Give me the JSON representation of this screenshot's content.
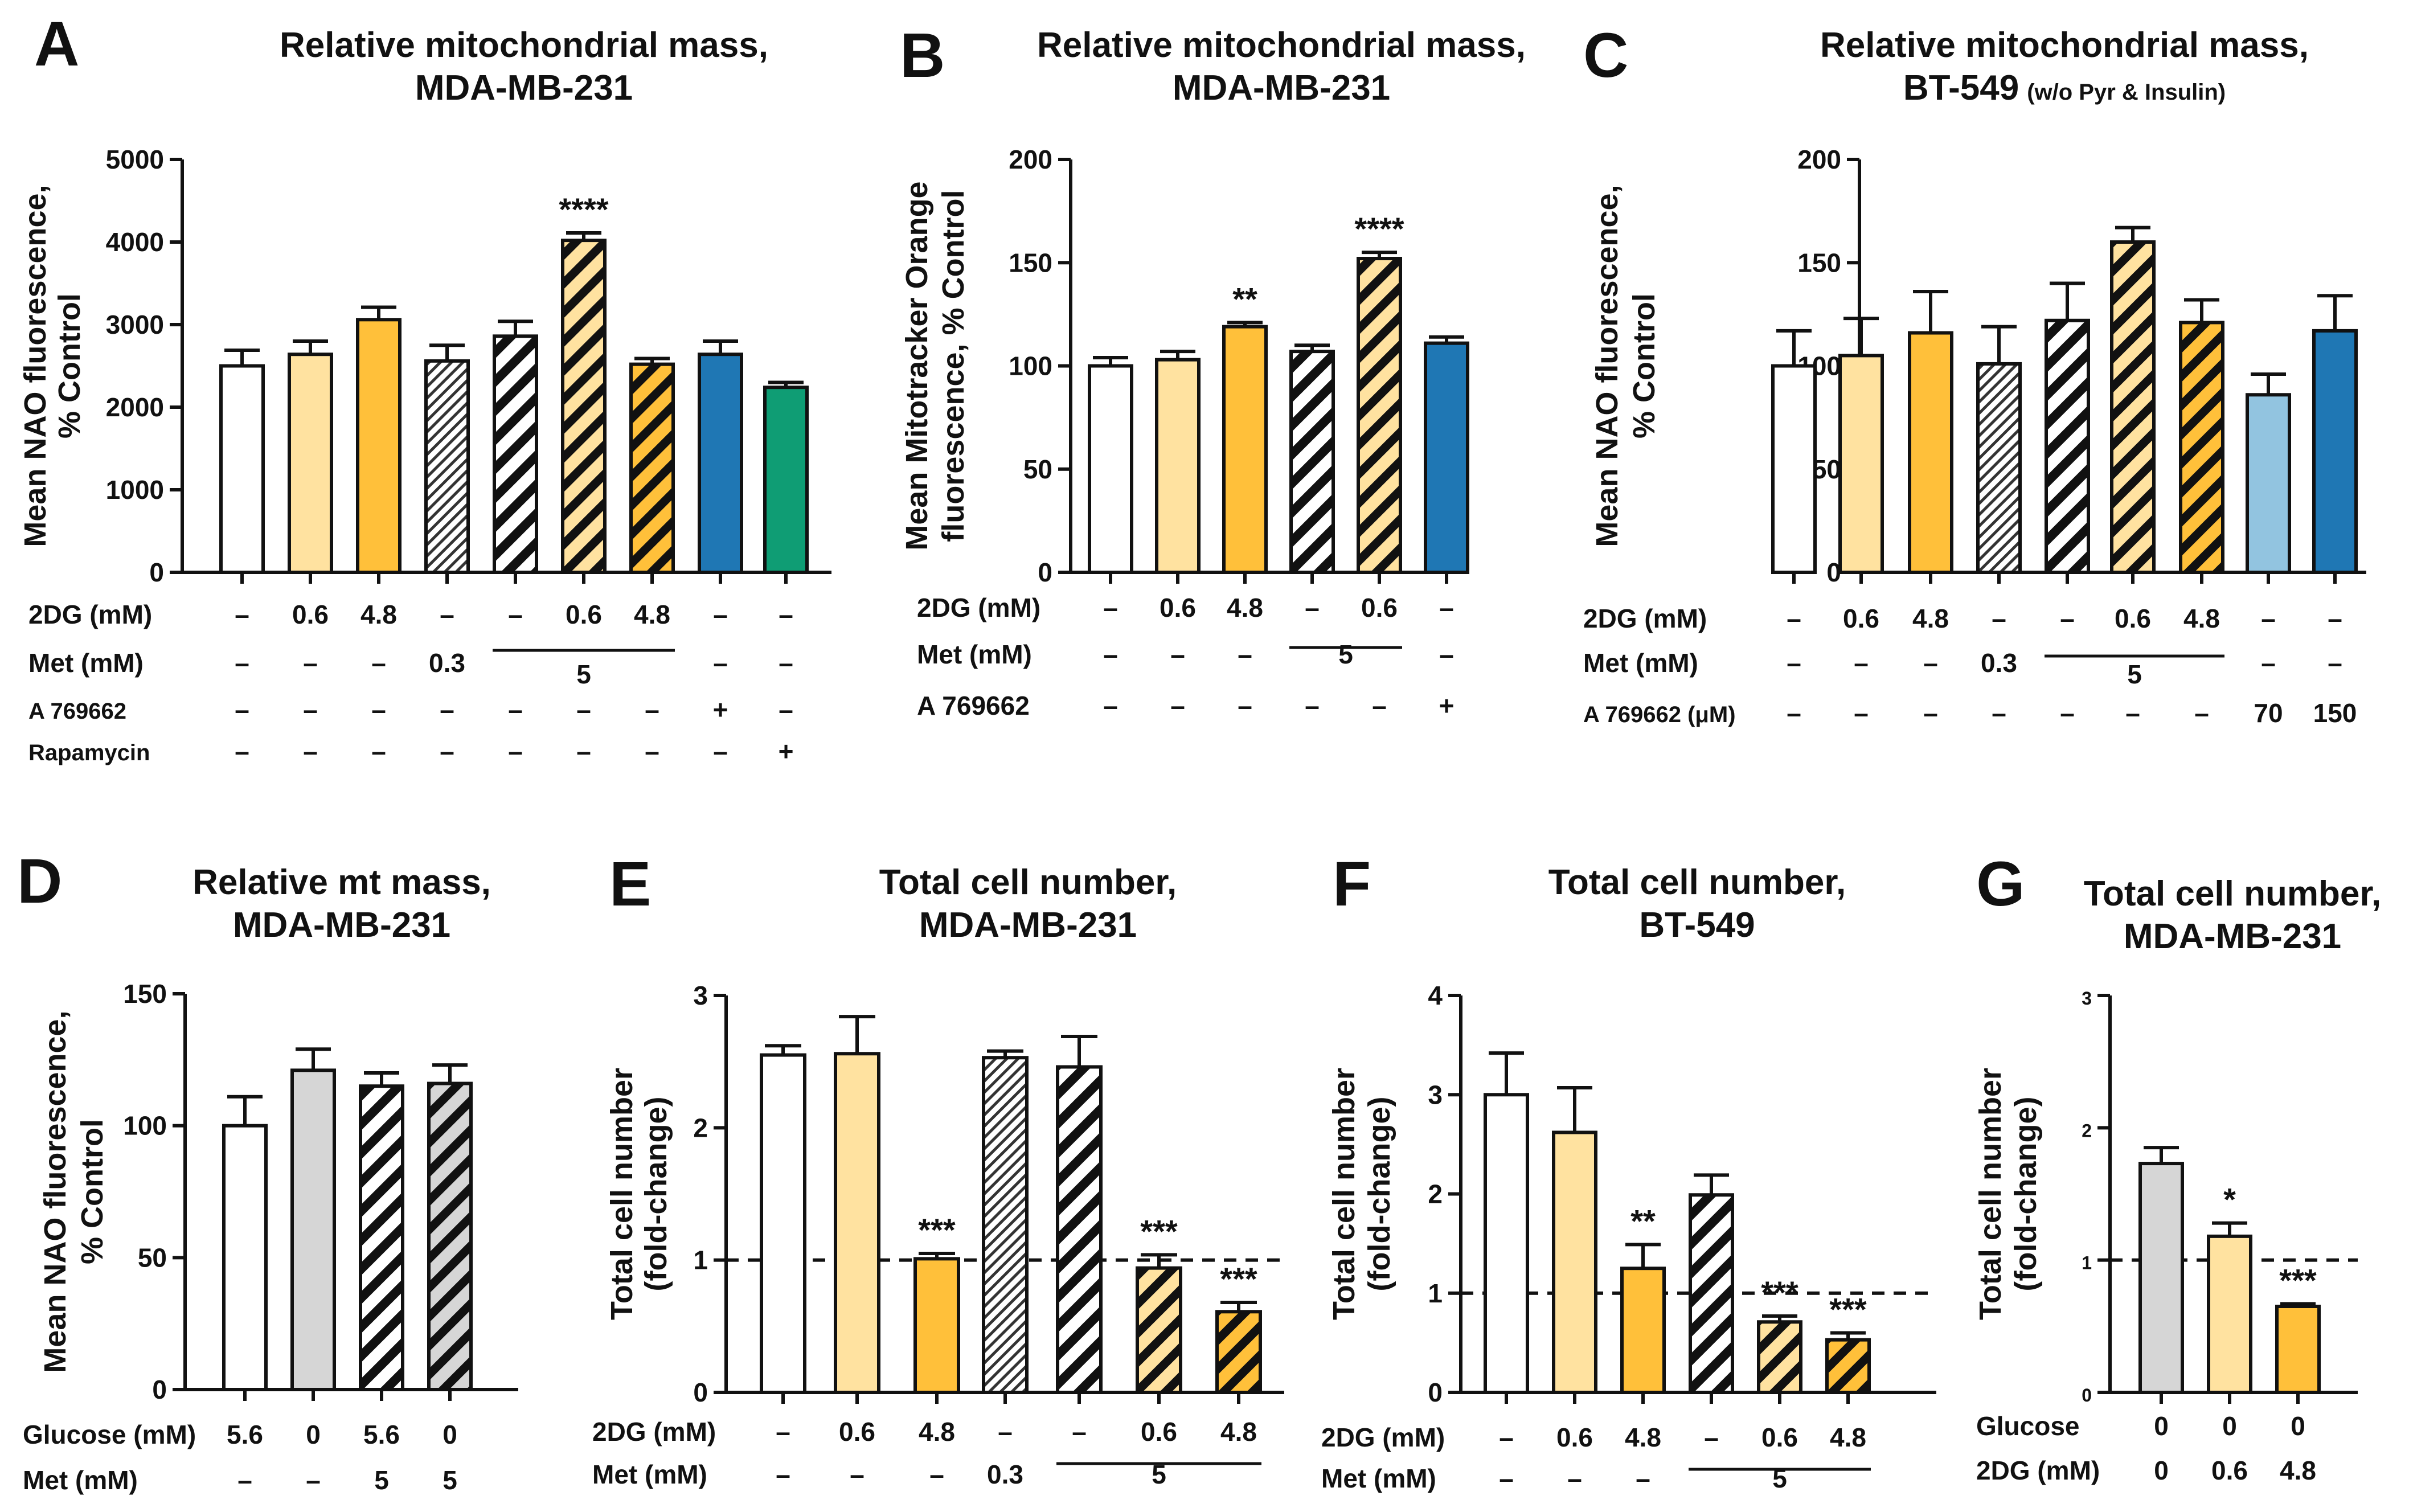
{
  "colors": {
    "white": "#ffffff",
    "light_yellow": "#FFE2A0",
    "orange": "#FFC03A",
    "blue": "#1F77B4",
    "green": "#0F9D74",
    "light_blue": "#92C4E0",
    "gray": "#D6D6D6",
    "black": "#111111"
  },
  "chart_data": [
    {
      "panel": "A",
      "type": "bar",
      "title": "Relative mitochondrial mass,",
      "title2": "MDA-MB-231",
      "ylabel": "Mean NAO fluorescence,",
      "ylabel2": "% Control",
      "ylim": [
        0,
        5000
      ],
      "yticks": [
        0,
        1000,
        2000,
        3000,
        4000,
        5000
      ],
      "values": [
        2500,
        2640,
        3060,
        2560,
        2860,
        4020,
        2520,
        2640,
        2240
      ],
      "errors": [
        190,
        160,
        150,
        190,
        180,
        90,
        70,
        160,
        60
      ],
      "fills": [
        "white",
        "light_yellow",
        "orange",
        "fine_hatch",
        "bw_hatch",
        "yellow_hatch",
        "orange_hatch",
        "blue",
        "green"
      ],
      "annotations": [
        {
          "bar": 5,
          "text": "****"
        }
      ],
      "conditions": [
        {
          "label": "2DG (mM)",
          "values": [
            "–",
            "0.6",
            "4.8",
            "–",
            "–",
            "0.6",
            "4.8",
            "–",
            "–"
          ]
        },
        {
          "label": "Met (mM)",
          "values": [
            "–",
            "–",
            "–",
            "0.3",
            "",
            "",
            "",
            "–",
            "–"
          ],
          "span": {
            "from": 4,
            "to": 6,
            "text": "5"
          }
        },
        {
          "label": "A 769662",
          "values": [
            "–",
            "–",
            "–",
            "–",
            "–",
            "–",
            "–",
            "+",
            "–"
          ]
        },
        {
          "label": "Rapamycin",
          "values": [
            "–",
            "–",
            "–",
            "–",
            "–",
            "–",
            "–",
            "–",
            "+"
          ]
        }
      ]
    },
    {
      "panel": "B",
      "type": "bar",
      "title": "Relative mitochondrial mass,",
      "title2": "MDA-MB-231",
      "ylabel": "Mean Mitotracker Orange",
      "ylabel2": "fluorescence, % Control",
      "ylim": [
        0,
        200
      ],
      "yticks": [
        0,
        50,
        100,
        150,
        200
      ],
      "values": [
        100,
        103,
        119,
        107,
        152,
        111
      ],
      "errors": [
        4,
        4,
        2,
        3,
        3,
        3
      ],
      "fills": [
        "white",
        "light_yellow",
        "orange",
        "bw_hatch",
        "yellow_hatch",
        "blue"
      ],
      "annotations": [
        {
          "bar": 2,
          "text": "**"
        },
        {
          "bar": 4,
          "text": "****"
        }
      ],
      "conditions": [
        {
          "label": "2DG (mM)",
          "values": [
            "–",
            "0.6",
            "4.8",
            "–",
            "0.6",
            "–"
          ]
        },
        {
          "label": "Met (mM)",
          "values": [
            "–",
            "–",
            "–",
            "",
            "",
            "–"
          ],
          "span": {
            "from": 3,
            "to": 4,
            "text": "5"
          }
        },
        {
          "label": "A 769662",
          "values": [
            "–",
            "–",
            "–",
            "–",
            "–",
            "+"
          ]
        }
      ]
    },
    {
      "panel": "C",
      "type": "bar",
      "title": "Relative mitochondrial mass,",
      "title2": "BT-549",
      "title2_suffix": "(w/o Pyr & Insulin)",
      "ylabel": "Mean NAO fluorescence,",
      "ylabel2": "% Control",
      "ylim": [
        0,
        200
      ],
      "yticks": [
        0,
        50,
        100,
        150,
        200
      ],
      "values": [
        100,
        105,
        116,
        101,
        122,
        160,
        121,
        86,
        117
      ],
      "errors": [
        17,
        18,
        20,
        18,
        18,
        7,
        11,
        10,
        17
      ],
      "fills": [
        "white",
        "light_yellow",
        "orange",
        "fine_hatch",
        "bw_hatch",
        "yellow_hatch",
        "orange_hatch",
        "light_blue",
        "blue"
      ],
      "annotations": [],
      "conditions": [
        {
          "label": "2DG (mM)",
          "values": [
            "–",
            "0.6",
            "4.8",
            "–",
            "–",
            "0.6",
            "4.8",
            "–",
            "–"
          ]
        },
        {
          "label": "Met (mM)",
          "values": [
            "–",
            "–",
            "–",
            "0.3",
            "",
            "",
            "",
            "–",
            "–"
          ],
          "span": {
            "from": 4,
            "to": 6,
            "text": "5"
          }
        },
        {
          "label": "A 769662 (μM)",
          "values": [
            "–",
            "–",
            "–",
            "–",
            "–",
            "–",
            "–",
            "70",
            "150"
          ]
        }
      ]
    },
    {
      "panel": "D",
      "type": "bar",
      "title": "Relative mt mass,",
      "title2": "MDA-MB-231",
      "ylabel": "Mean NAO fluorescence,",
      "ylabel2": "% Control",
      "ylim": [
        0,
        150
      ],
      "yticks": [
        0,
        50,
        100,
        150
      ],
      "values": [
        100,
        121,
        115,
        116
      ],
      "errors": [
        11,
        8,
        5,
        7
      ],
      "fills": [
        "white",
        "gray",
        "bw_hatch",
        "gray_hatch"
      ],
      "annotations": [],
      "conditions": [
        {
          "label": "Glucose (mM)",
          "values": [
            "5.6",
            "0",
            "5.6",
            "0"
          ]
        },
        {
          "label": "Met (mM)",
          "values": [
            "–",
            "–",
            "5",
            "5"
          ]
        }
      ]
    },
    {
      "panel": "E",
      "type": "bar",
      "title": "Total cell number,",
      "title2": "MDA-MB-231",
      "ylabel": "Total cell number",
      "ylabel2": "(fold-change)",
      "ylim": [
        0,
        3
      ],
      "yticks": [
        0,
        1,
        2,
        3
      ],
      "reference_line": 1,
      "values": [
        2.55,
        2.56,
        1.01,
        2.53,
        2.46,
        0.94,
        0.61
      ],
      "errors": [
        0.07,
        0.28,
        0.04,
        0.05,
        0.23,
        0.1,
        0.07
      ],
      "fills": [
        "white",
        "light_yellow",
        "orange",
        "fine_hatch",
        "bw_hatch",
        "yellow_hatch",
        "orange_hatch"
      ],
      "annotations": [
        {
          "bar": 2,
          "text": "***"
        },
        {
          "bar": 5,
          "text": "***"
        },
        {
          "bar": 6,
          "text": "***"
        }
      ],
      "conditions": [
        {
          "label": "2DG (mM)",
          "values": [
            "–",
            "0.6",
            "4.8",
            "–",
            "–",
            "0.6",
            "4.8"
          ]
        },
        {
          "label": "Met (mM)",
          "values": [
            "–",
            "–",
            "–",
            "0.3",
            "",
            "",
            ""
          ],
          "span": {
            "from": 4,
            "to": 6,
            "text": "5"
          }
        }
      ]
    },
    {
      "panel": "F",
      "type": "bar",
      "title": "Total cell number,",
      "title2": "BT-549",
      "ylabel": "Total cell number",
      "ylabel2": "(fold-change)",
      "ylim": [
        0,
        4
      ],
      "yticks": [
        0,
        1,
        2,
        3,
        4
      ],
      "reference_line": 1,
      "values": [
        3.0,
        2.62,
        1.25,
        1.99,
        0.71,
        0.53
      ],
      "errors": [
        0.42,
        0.45,
        0.24,
        0.2,
        0.06,
        0.07
      ],
      "fills": [
        "white",
        "light_yellow",
        "orange",
        "bw_hatch",
        "yellow_hatch",
        "orange_hatch"
      ],
      "annotations": [
        {
          "bar": 2,
          "text": "**"
        },
        {
          "bar": 4,
          "text": "***"
        },
        {
          "bar": 5,
          "text": "***"
        }
      ],
      "conditions": [
        {
          "label": "2DG (mM)",
          "values": [
            "–",
            "0.6",
            "4.8",
            "–",
            "0.6",
            "4.8"
          ]
        },
        {
          "label": "Met (mM)",
          "values": [
            "–",
            "–",
            "–",
            "",
            "",
            ""
          ],
          "span": {
            "from": 3,
            "to": 5,
            "text": "5"
          }
        }
      ]
    },
    {
      "panel": "G",
      "type": "bar",
      "title": "Total cell number,",
      "title2": "MDA-MB-231",
      "ylabel": "Total cell number",
      "ylabel2": "(fold-change)",
      "ylim": [
        0,
        3
      ],
      "yticks": [
        0,
        1,
        2,
        3
      ],
      "reference_line": 1,
      "values": [
        1.73,
        1.18,
        0.65
      ],
      "errors": [
        0.12,
        0.1,
        0.02
      ],
      "fills": [
        "gray",
        "light_yellow",
        "orange"
      ],
      "annotations": [
        {
          "bar": 1,
          "text": "*"
        },
        {
          "bar": 2,
          "text": "***"
        }
      ],
      "conditions": [
        {
          "label": "Glucose",
          "values": [
            "0",
            "0",
            "0"
          ]
        },
        {
          "label": "2DG (mM)",
          "values": [
            "0",
            "0.6",
            "4.8"
          ]
        }
      ]
    }
  ]
}
